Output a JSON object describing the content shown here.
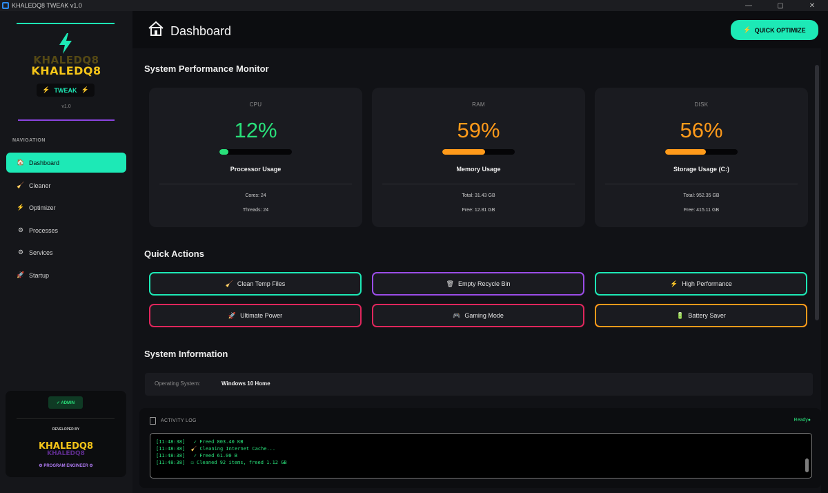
{
  "window": {
    "title": "KHALEDQ8 TWEAK v1.0",
    "controls": [
      "—",
      "▢",
      "✕"
    ]
  },
  "sidebar": {
    "logo": {
      "name_shadow": "KHALEDQ8",
      "name": "KHALEDQ8",
      "badge": "TWEAK",
      "version": "v1.0"
    },
    "nav_heading": "NAVIGATION",
    "items": [
      {
        "label": "Dashboard",
        "icon": "🏠",
        "active": true
      },
      {
        "label": "Cleaner",
        "icon": "🧹",
        "active": false
      },
      {
        "label": "Optimizer",
        "icon": "⚡",
        "active": false
      },
      {
        "label": "Processes",
        "icon": "⚙",
        "active": false
      },
      {
        "label": "Services",
        "icon": "⚙",
        "active": false
      },
      {
        "label": "Startup",
        "icon": "🚀",
        "active": false
      }
    ],
    "admin": {
      "badge": "✓ ADMIN",
      "developed_by": "DEVELOPED BY",
      "dev_name": "KHALEDQ8",
      "role": "PROGRAM ENGINEER"
    }
  },
  "header": {
    "title": "Dashboard",
    "quick_optimize": "QUICK OPTIMIZE"
  },
  "performance": {
    "title": "System Performance Monitor",
    "cards": [
      {
        "label": "CPU",
        "value": "12%",
        "fill": 0.12,
        "color": "#29e07a",
        "name": "Processor Usage",
        "detail1": "Cores: 24",
        "detail2": "Threads: 24"
      },
      {
        "label": "RAM",
        "value": "59%",
        "fill": 0.59,
        "color": "#ff9a1a",
        "name": "Memory Usage",
        "detail1": "Total: 31.43 GB",
        "detail2": "Free: 12.81 GB"
      },
      {
        "label": "DISK",
        "value": "56%",
        "fill": 0.56,
        "color": "#ff9a1a",
        "name": "Storage Usage (C:)",
        "detail1": "Total: 952.35 GB",
        "detail2": "Free: 415.11 GB"
      }
    ]
  },
  "quick_actions": {
    "title": "Quick Actions",
    "buttons": [
      {
        "label": "Clean Temp Files",
        "icon": "🧹",
        "color": "#1de9b6"
      },
      {
        "label": "Empty Recycle Bin",
        "icon": "🗑",
        "color": "#9b4de8"
      },
      {
        "label": "High Performance",
        "icon": "⚡",
        "color": "#1de9b6"
      },
      {
        "label": "Ultimate Power",
        "icon": "🚀",
        "color": "#e0265c"
      },
      {
        "label": "Gaming Mode",
        "icon": "🎮",
        "color": "#e0265c"
      },
      {
        "label": "Battery Saver",
        "icon": "🔋",
        "color": "#ff9a1a"
      }
    ]
  },
  "system_info": {
    "title": "System Information",
    "rows": [
      {
        "label": "Operating System:",
        "value": "Windows 10 Home"
      }
    ]
  },
  "activity_log": {
    "title": "ACTIVITY LOG",
    "status": "Ready●",
    "lines": [
      "[11:48:38]   ✓ Freed 803.40 KB",
      "[11:48:38]  🧹 Cleaning Internet Cache...",
      "[11:48:38]   ✓ Freed 61.00 B",
      "[11:48:38]  ☑ Cleaned 92 items, freed 1.12 GB"
    ]
  }
}
